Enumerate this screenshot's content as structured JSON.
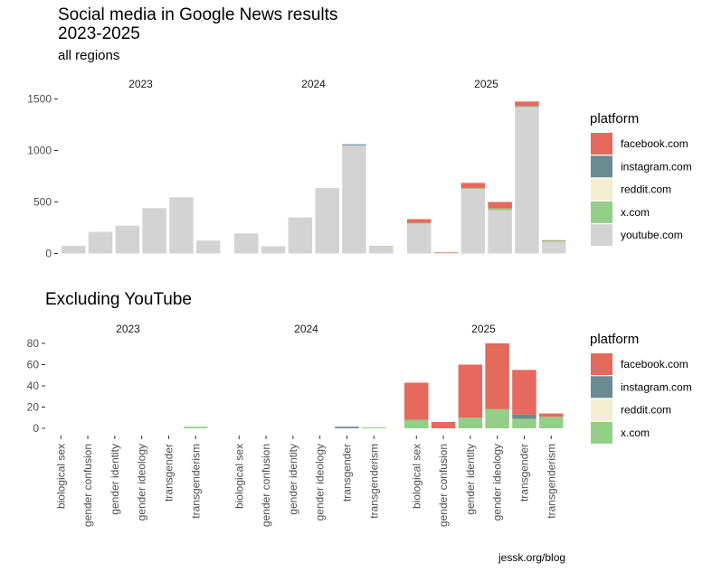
{
  "header": {
    "title_line1": "Social media in Google News results",
    "title_line2": "2023-2025",
    "subtitle": "all regions"
  },
  "bottom_title": "Excluding YouTube",
  "caption": "jessk.org/blog",
  "colors": {
    "facebook.com": "#e5695c",
    "instagram.com": "#6a8a93",
    "reddit.com": "#f5edd2",
    "x.com": "#93cf87",
    "youtube.com": "#d3d3d3"
  },
  "chart_data": [
    {
      "type": "bar",
      "stacked": true,
      "facets": [
        "2023",
        "2024",
        "2025"
      ],
      "categories": [
        "biological sex",
        "gender confusion",
        "gender identity",
        "gender ideology",
        "transgender",
        "transgenderism"
      ],
      "ylim": [
        0,
        1500
      ],
      "yticks": [
        0,
        500,
        1000,
        1500
      ],
      "yticklabels": [
        "0",
        "500",
        "1000",
        "1500"
      ],
      "legend_title": "platform",
      "legend_position": "right",
      "legend": [
        "facebook.com",
        "instagram.com",
        "reddit.com",
        "x.com",
        "youtube.com"
      ],
      "data": {
        "2023": {
          "x.com": [
            0,
            0,
            0,
            0,
            0,
            0
          ],
          "youtube.com": [
            75,
            210,
            270,
            440,
            545,
            125
          ]
        },
        "2024": {
          "x.com": [
            0,
            0,
            0,
            0,
            0,
            2
          ],
          "youtube.com": [
            195,
            70,
            350,
            635,
            1050,
            70
          ],
          "instagram.com": [
            0,
            0,
            0,
            0,
            10,
            0
          ]
        },
        "2025": {
          "youtube.com": [
            290,
            5,
            625,
            420,
            1420,
            115
          ],
          "x.com": [
            8,
            0,
            10,
            18,
            9,
            11
          ],
          "reddit.com": [
            0,
            0,
            0,
            0,
            0,
            0
          ],
          "instagram.com": [
            0,
            0,
            0,
            0,
            4,
            0
          ],
          "facebook.com": [
            35,
            6,
            50,
            62,
            42,
            3
          ]
        }
      }
    },
    {
      "type": "bar",
      "stacked": true,
      "facets": [
        "2023",
        "2024",
        "2025"
      ],
      "categories": [
        "biological sex",
        "gender confusion",
        "gender identity",
        "gender ideology",
        "transgender",
        "transgenderism"
      ],
      "ylim": [
        0,
        80
      ],
      "yticks": [
        0,
        20,
        40,
        60,
        80
      ],
      "yticklabels": [
        "0",
        "20",
        "40",
        "60",
        "80"
      ],
      "legend_title": "platform",
      "legend_position": "right",
      "legend": [
        "facebook.com",
        "instagram.com",
        "reddit.com",
        "x.com"
      ],
      "data": {
        "2023": {
          "x.com": [
            0,
            0,
            0,
            0,
            0,
            1.5
          ]
        },
        "2024": {
          "instagram.com": [
            0,
            0,
            0,
            0,
            1.5,
            0
          ],
          "x.com": [
            0,
            0,
            0,
            0,
            0,
            1
          ]
        },
        "2025": {
          "x.com": [
            8,
            0,
            10,
            18,
            9,
            11
          ],
          "reddit.com": [
            0,
            0,
            0,
            0,
            0,
            0
          ],
          "instagram.com": [
            0,
            0,
            0,
            0,
            4,
            0
          ],
          "facebook.com": [
            35,
            6,
            50,
            62,
            42,
            3
          ]
        }
      }
    }
  ]
}
